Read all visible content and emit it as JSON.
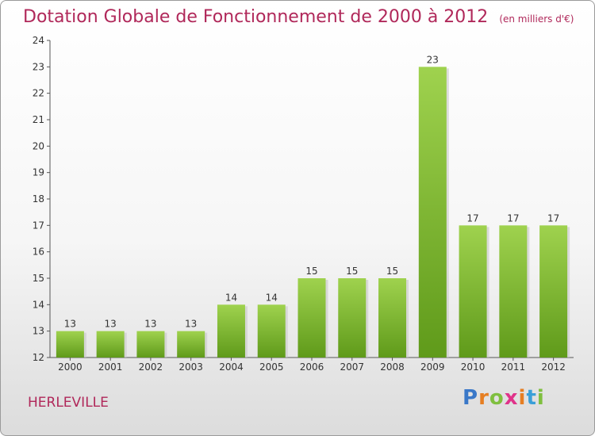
{
  "title": "Dotation Globale de Fonctionnement de 2000 à 2012",
  "unit": "(en milliers d'€)",
  "commune": "HERLEVILLE",
  "logo": {
    "letters": [
      "P",
      "r",
      "o",
      "x",
      "i",
      "t",
      "i"
    ],
    "colors": [
      "#3a78c8",
      "#e67e22",
      "#7fbf3f",
      "#e0338a",
      "#e67e22",
      "#3a9fd8",
      "#7fbf3f"
    ]
  },
  "chart_data": {
    "type": "bar",
    "title": "Dotation Globale de Fonctionnement de 2000 à 2012",
    "subtitle": "(en milliers d'€)",
    "xlabel": "",
    "ylabel": "",
    "categories": [
      "2000",
      "2001",
      "2002",
      "2003",
      "2004",
      "2005",
      "2006",
      "2007",
      "2008",
      "2009",
      "2010",
      "2011",
      "2012"
    ],
    "values": [
      13,
      13,
      13,
      13,
      14,
      14,
      15,
      15,
      15,
      23,
      17,
      17,
      17
    ],
    "ylim": [
      12,
      24
    ],
    "yticks": [
      12,
      13,
      14,
      15,
      16,
      17,
      18,
      19,
      20,
      21,
      22,
      23,
      24
    ],
    "grid": false,
    "legend": "none",
    "bar_color_top": "#9fd24e",
    "bar_color_bottom": "#5f9a1a"
  }
}
